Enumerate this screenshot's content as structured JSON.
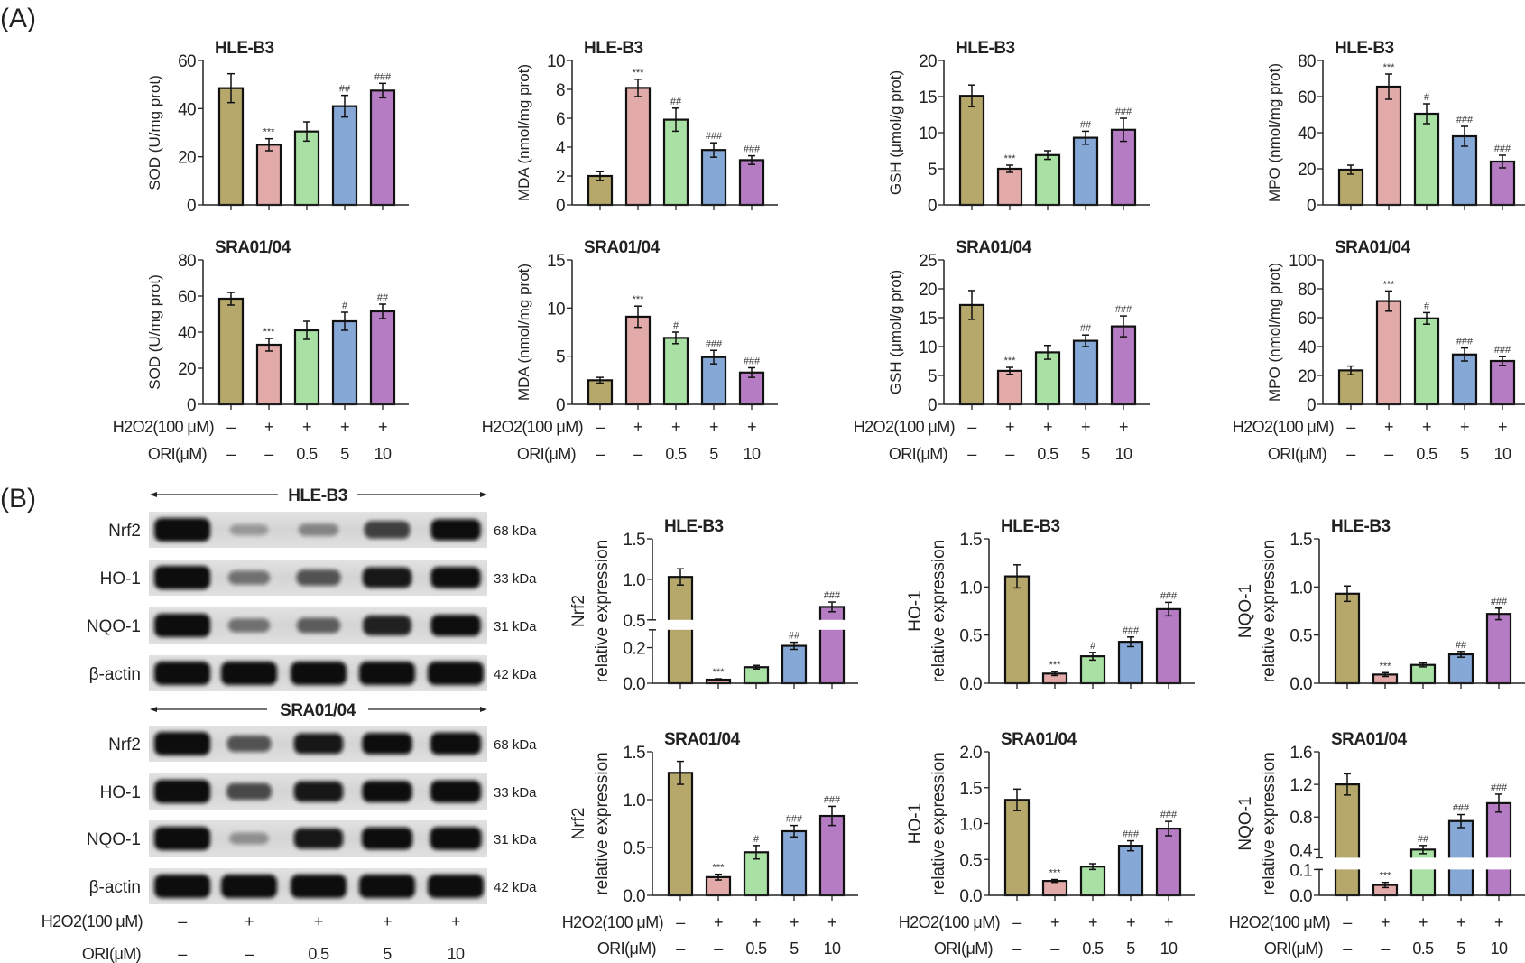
{
  "panel_a": {
    "label": "(A)"
  },
  "panel_b": {
    "label": "(B)",
    "blot": {
      "groups": [
        {
          "title": "HLE-B3",
          "rows": [
            {
              "protein": "Nrf2",
              "kda": "68 kDa",
              "band_intensity": [
                1,
                0.15,
                0.25,
                0.6,
                0.85
              ]
            },
            {
              "protein": "HO-1",
              "kda": "33 kDa",
              "band_intensity": [
                1,
                0.35,
                0.5,
                0.8,
                0.85
              ]
            },
            {
              "protein": "NQO-1",
              "kda": "31 kDa",
              "band_intensity": [
                1,
                0.35,
                0.45,
                0.75,
                0.85
              ]
            },
            {
              "protein": "β-actin",
              "kda": "42 kDa",
              "band_intensity": [
                1,
                1,
                1,
                1,
                1
              ]
            }
          ]
        },
        {
          "title": "SRA01/04",
          "rows": [
            {
              "protein": "Nrf2",
              "kda": "68 kDa",
              "band_intensity": [
                1,
                0.5,
                0.8,
                0.85,
                0.9
              ]
            },
            {
              "protein": "HO-1",
              "kda": "33 kDa",
              "band_intensity": [
                1,
                0.55,
                0.8,
                0.85,
                0.9
              ]
            },
            {
              "protein": "NQO-1",
              "kda": "31 kDa",
              "band_intensity": [
                1,
                0.2,
                0.8,
                0.9,
                0.95
              ]
            },
            {
              "protein": "β-actin",
              "kda": "42 kDa",
              "band_intensity": [
                1,
                1,
                1,
                1,
                1
              ]
            }
          ]
        }
      ]
    }
  },
  "conditions": {
    "h2o2_label": "H2O2(100 μM)",
    "h2o2": [
      "–",
      "+",
      "+",
      "+",
      "+"
    ],
    "ori_label": "ORI(μM)",
    "ori": [
      "–",
      "–",
      "0.5",
      "5",
      "10"
    ]
  },
  "colors": [
    "#B5A86A",
    "#E3AAAA",
    "#A9E0A4",
    "#86A8D6",
    "#B57CC4"
  ],
  "chart_data": [
    {
      "type": "bar",
      "panel": "A",
      "title": "HLE-B3",
      "ylabel": "SOD (U/mg prot)",
      "ylim": [
        0,
        60
      ],
      "yticks": [
        0,
        20,
        40,
        60
      ],
      "values": [
        48.5,
        25,
        30.5,
        41,
        47.5
      ],
      "errors": [
        6,
        2.5,
        4,
        4.5,
        3
      ],
      "annotations": [
        "",
        "***",
        "",
        "##",
        "###"
      ]
    },
    {
      "type": "bar",
      "panel": "A",
      "title": "HLE-B3",
      "ylabel": "MDA (nmol/mg prot)",
      "ylim": [
        0,
        10
      ],
      "yticks": [
        0,
        2,
        4,
        6,
        8,
        10
      ],
      "values": [
        2,
        8.1,
        5.9,
        3.8,
        3.1
      ],
      "errors": [
        0.3,
        0.6,
        0.8,
        0.5,
        0.3
      ],
      "annotations": [
        "",
        "***",
        "##",
        "###",
        "###"
      ]
    },
    {
      "type": "bar",
      "panel": "A",
      "title": "HLE-B3",
      "ylabel": "GSH (μmol/g prot)",
      "ylim": [
        0,
        20
      ],
      "yticks": [
        0,
        5,
        10,
        15,
        20
      ],
      "values": [
        15.1,
        5,
        6.9,
        9.3,
        10.4
      ],
      "errors": [
        1.5,
        0.5,
        0.6,
        0.9,
        1.6
      ],
      "annotations": [
        "",
        "***",
        "",
        "##",
        "###"
      ]
    },
    {
      "type": "bar",
      "panel": "A",
      "title": "HLE-B3",
      "ylabel": "MPO (nmol/mg prot)",
      "ylim": [
        0,
        80
      ],
      "yticks": [
        0,
        20,
        40,
        60,
        80
      ],
      "values": [
        19.5,
        65.5,
        50.5,
        38,
        24
      ],
      "errors": [
        2.5,
        7,
        5.5,
        5.5,
        3.5
      ],
      "annotations": [
        "",
        "***",
        "#",
        "###",
        "###"
      ]
    },
    {
      "type": "bar",
      "panel": "A",
      "title": "SRA01/04",
      "ylabel": "SOD (U/mg prot)",
      "ylim": [
        0,
        80
      ],
      "yticks": [
        0,
        20,
        40,
        60,
        80
      ],
      "values": [
        58.5,
        33,
        41,
        46,
        51.5
      ],
      "errors": [
        3.5,
        3.5,
        5,
        5,
        4
      ],
      "annotations": [
        "",
        "***",
        "",
        "#",
        "##"
      ]
    },
    {
      "type": "bar",
      "panel": "A",
      "title": "SRA01/04",
      "ylabel": "MDA (nmol/mg prot)",
      "ylim": [
        0,
        15
      ],
      "yticks": [
        0,
        5,
        10,
        15
      ],
      "values": [
        2.5,
        9.1,
        6.9,
        4.9,
        3.3
      ],
      "errors": [
        0.3,
        1.1,
        0.6,
        0.7,
        0.5
      ],
      "annotations": [
        "",
        "***",
        "#",
        "###",
        "###"
      ]
    },
    {
      "type": "bar",
      "panel": "A",
      "title": "SRA01/04",
      "ylabel": "GSH (μmol/g prot)",
      "ylim": [
        0,
        25
      ],
      "yticks": [
        0,
        5,
        10,
        15,
        20,
        25
      ],
      "values": [
        17.2,
        5.8,
        9,
        11,
        13.5
      ],
      "errors": [
        2.5,
        0.6,
        1.2,
        1,
        1.8
      ],
      "annotations": [
        "",
        "***",
        "",
        "##",
        "###"
      ]
    },
    {
      "type": "bar",
      "panel": "A",
      "title": "SRA01/04",
      "ylabel": "MPO (nmol/mg prot)",
      "ylim": [
        0,
        100
      ],
      "yticks": [
        0,
        20,
        40,
        60,
        80,
        100
      ],
      "values": [
        23.5,
        71.5,
        59.5,
        34.5,
        30
      ],
      "errors": [
        3,
        7,
        4,
        4.5,
        3
      ],
      "annotations": [
        "",
        "***",
        "#",
        "###",
        "###"
      ]
    },
    {
      "type": "bar",
      "panel": "B",
      "title": "HLE-B3",
      "ylabel": "Nrf2",
      "ylabel2": "relative expression",
      "ylim": [
        0,
        1.5
      ],
      "axis_break": {
        "lower": [
          0,
          0.3
        ],
        "upper": [
          0.5,
          1.5
        ]
      },
      "yticks": [
        "0.0",
        "0.2",
        "0.5",
        "1.0",
        "1.5"
      ],
      "values": [
        1.03,
        0.02,
        0.09,
        0.21,
        0.66
      ],
      "errors": [
        0.1,
        0.005,
        0.01,
        0.02,
        0.06
      ],
      "annotations": [
        "",
        "***",
        "",
        "##",
        "###"
      ]
    },
    {
      "type": "bar",
      "panel": "B",
      "title": "HLE-B3",
      "ylabel": "HO-1",
      "ylabel2": "relative expression",
      "ylim": [
        0,
        1.5
      ],
      "yticks": [
        "0.0",
        "0.5",
        "1.0",
        "1.5"
      ],
      "values": [
        1.11,
        0.1,
        0.28,
        0.43,
        0.77
      ],
      "errors": [
        0.12,
        0.02,
        0.04,
        0.05,
        0.07
      ],
      "annotations": [
        "",
        "***",
        "#",
        "###",
        "###"
      ]
    },
    {
      "type": "bar",
      "panel": "B",
      "title": "HLE-B3",
      "ylabel": "NQO-1",
      "ylabel2": "relative expression",
      "ylim": [
        0,
        1.5
      ],
      "yticks": [
        "0.0",
        "0.5",
        "1.0",
        "1.5"
      ],
      "values": [
        0.93,
        0.09,
        0.19,
        0.3,
        0.72
      ],
      "errors": [
        0.08,
        0.02,
        0.02,
        0.03,
        0.06
      ],
      "annotations": [
        "",
        "***",
        "",
        "##",
        "###"
      ]
    },
    {
      "type": "bar",
      "panel": "B",
      "title": "SRA01/04",
      "ylabel": "Nrf2",
      "ylabel2": "relative expression",
      "ylim": [
        0,
        1.5
      ],
      "yticks": [
        "0.0",
        "0.5",
        "1.0",
        "1.5"
      ],
      "values": [
        1.28,
        0.19,
        0.45,
        0.67,
        0.83
      ],
      "errors": [
        0.12,
        0.03,
        0.07,
        0.06,
        0.1
      ],
      "annotations": [
        "",
        "***",
        "#",
        "###",
        "###"
      ]
    },
    {
      "type": "bar",
      "panel": "B",
      "title": "SRA01/04",
      "ylabel": "HO-1",
      "ylabel2": "relative expression",
      "ylim": [
        0,
        2.0
      ],
      "yticks": [
        "0.0",
        "0.5",
        "1.0",
        "1.5",
        "2.0"
      ],
      "values": [
        1.33,
        0.2,
        0.4,
        0.69,
        0.93
      ],
      "errors": [
        0.15,
        0.02,
        0.04,
        0.07,
        0.1
      ],
      "annotations": [
        "",
        "***",
        "",
        "###",
        "###"
      ]
    },
    {
      "type": "bar",
      "panel": "B",
      "title": "SRA01/04",
      "ylabel": "NQO-1",
      "ylabel2": "relative expression",
      "ylim": [
        0,
        1.6
      ],
      "axis_break": {
        "lower": [
          0,
          0.1
        ],
        "upper": [
          0.3,
          1.6
        ]
      },
      "yticks": [
        "0.0",
        "0.1",
        "0.4",
        "0.8",
        "1.2",
        "1.6"
      ],
      "values": [
        1.2,
        0.04,
        0.4,
        0.75,
        0.97
      ],
      "errors": [
        0.13,
        0.01,
        0.05,
        0.08,
        0.11
      ],
      "annotations": [
        "",
        "***",
        "##",
        "###",
        "###"
      ]
    }
  ]
}
